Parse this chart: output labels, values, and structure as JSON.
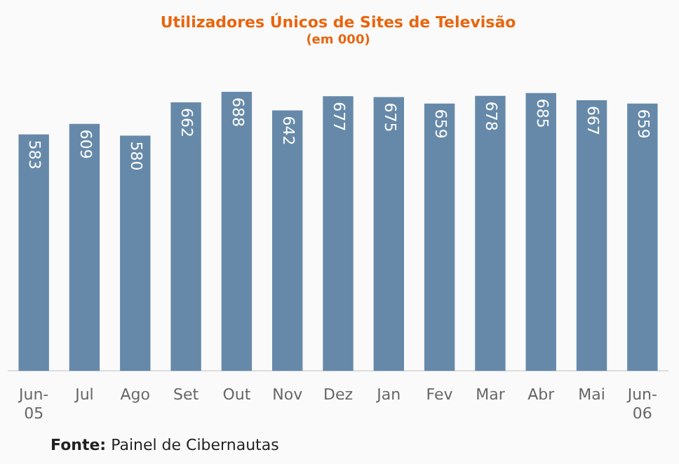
{
  "chart_data": {
    "type": "bar",
    "title": "Utilizadores Únicos de Sites de Televisão",
    "subtitle": "(em 000)",
    "categories": [
      "Jun-05",
      "Jul",
      "Ago",
      "Set",
      "Out",
      "Nov",
      "Dez",
      "Jan",
      "Fev",
      "Mar",
      "Abr",
      "Mai",
      "Jun-06"
    ],
    "values": [
      583,
      609,
      580,
      662,
      688,
      642,
      677,
      675,
      659,
      678,
      685,
      667,
      659
    ],
    "color": "#6689a9",
    "data_labels": true,
    "legend": false,
    "grid": false,
    "annotations": [
      "Fonte: Painel de Cibernautas"
    ]
  }
}
